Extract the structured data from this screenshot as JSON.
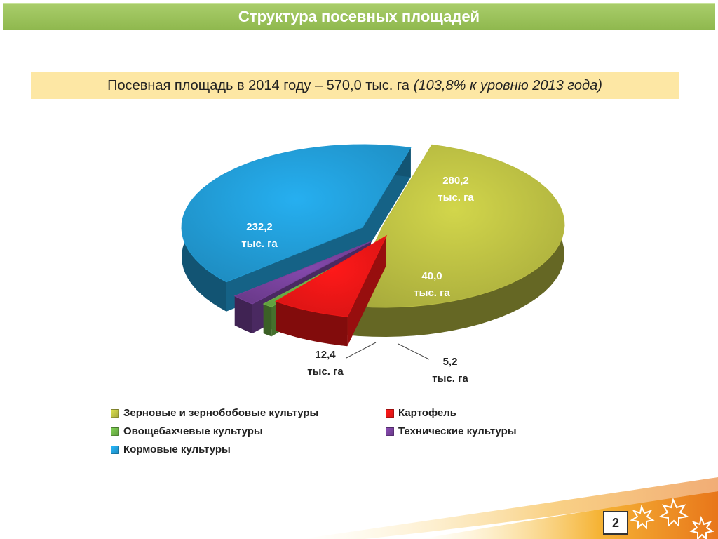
{
  "header": {
    "title": "Структура посевных площадей"
  },
  "subtitle": {
    "main": "Посевная площадь в 2014 году – 570,0 тыс. га",
    "note": "(103,8% к уровню 2013 года)"
  },
  "chart_data": {
    "type": "pie",
    "unit": "тыс. га",
    "slices": [
      {
        "name": "Зерновые и зернобобовые культуры",
        "value": 280.2,
        "label": "280,2",
        "color": "#a8ab3c"
      },
      {
        "name": "Картофель",
        "value": 40.0,
        "label": "40,0",
        "color": "#d81414"
      },
      {
        "name": "Овощебахчевые культуры",
        "value": 5.2,
        "label": "5,2",
        "color": "#62a040"
      },
      {
        "name": "Технические культуры",
        "value": 12.4,
        "label": "12,4",
        "color": "#6a3a8a"
      },
      {
        "name": "Кормовые культуры",
        "value": 232.2,
        "label": "232,2",
        "color": "#1e8cc0"
      }
    ],
    "legend_position": "bottom"
  },
  "footer": {
    "page_number": "2"
  }
}
